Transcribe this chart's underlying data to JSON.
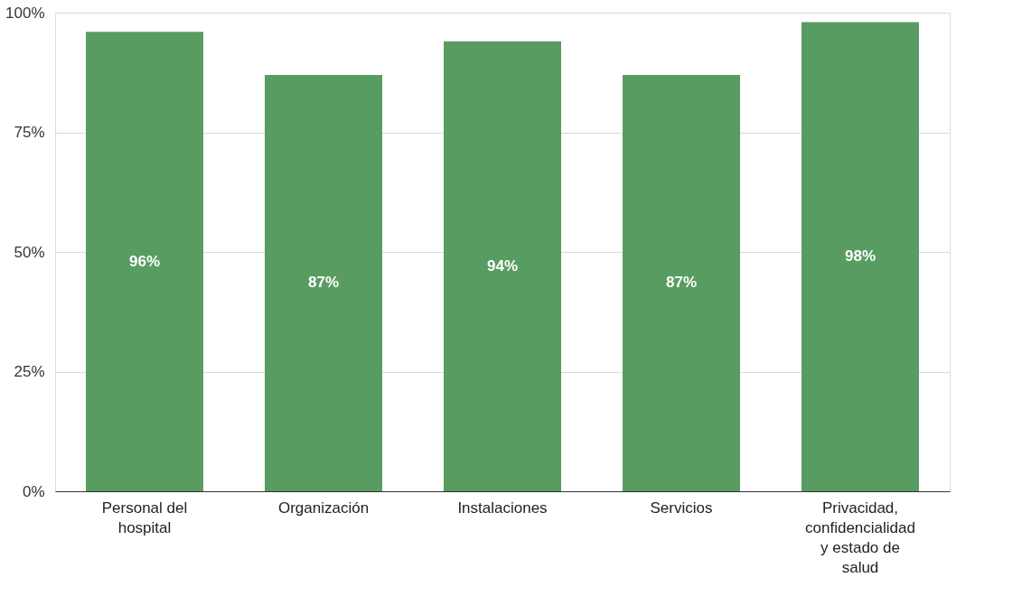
{
  "chart_data": {
    "type": "bar",
    "categories": [
      "Personal del hospital",
      "Organización",
      "Instalaciones",
      "Servicios",
      "Privacidad, confidencialidad y estado de salud"
    ],
    "values": [
      96,
      87,
      94,
      87,
      98
    ],
    "value_labels": [
      "96%",
      "87%",
      "94%",
      "87%",
      "98%"
    ],
    "color": "#589c62",
    "ylim": [
      0,
      100
    ],
    "yticks": [
      {
        "value": 0,
        "label": "0%"
      },
      {
        "value": 25,
        "label": "25%"
      },
      {
        "value": 50,
        "label": "50%"
      },
      {
        "value": 75,
        "label": "75%"
      },
      {
        "value": 100,
        "label": "100%"
      }
    ],
    "grid": "y"
  }
}
